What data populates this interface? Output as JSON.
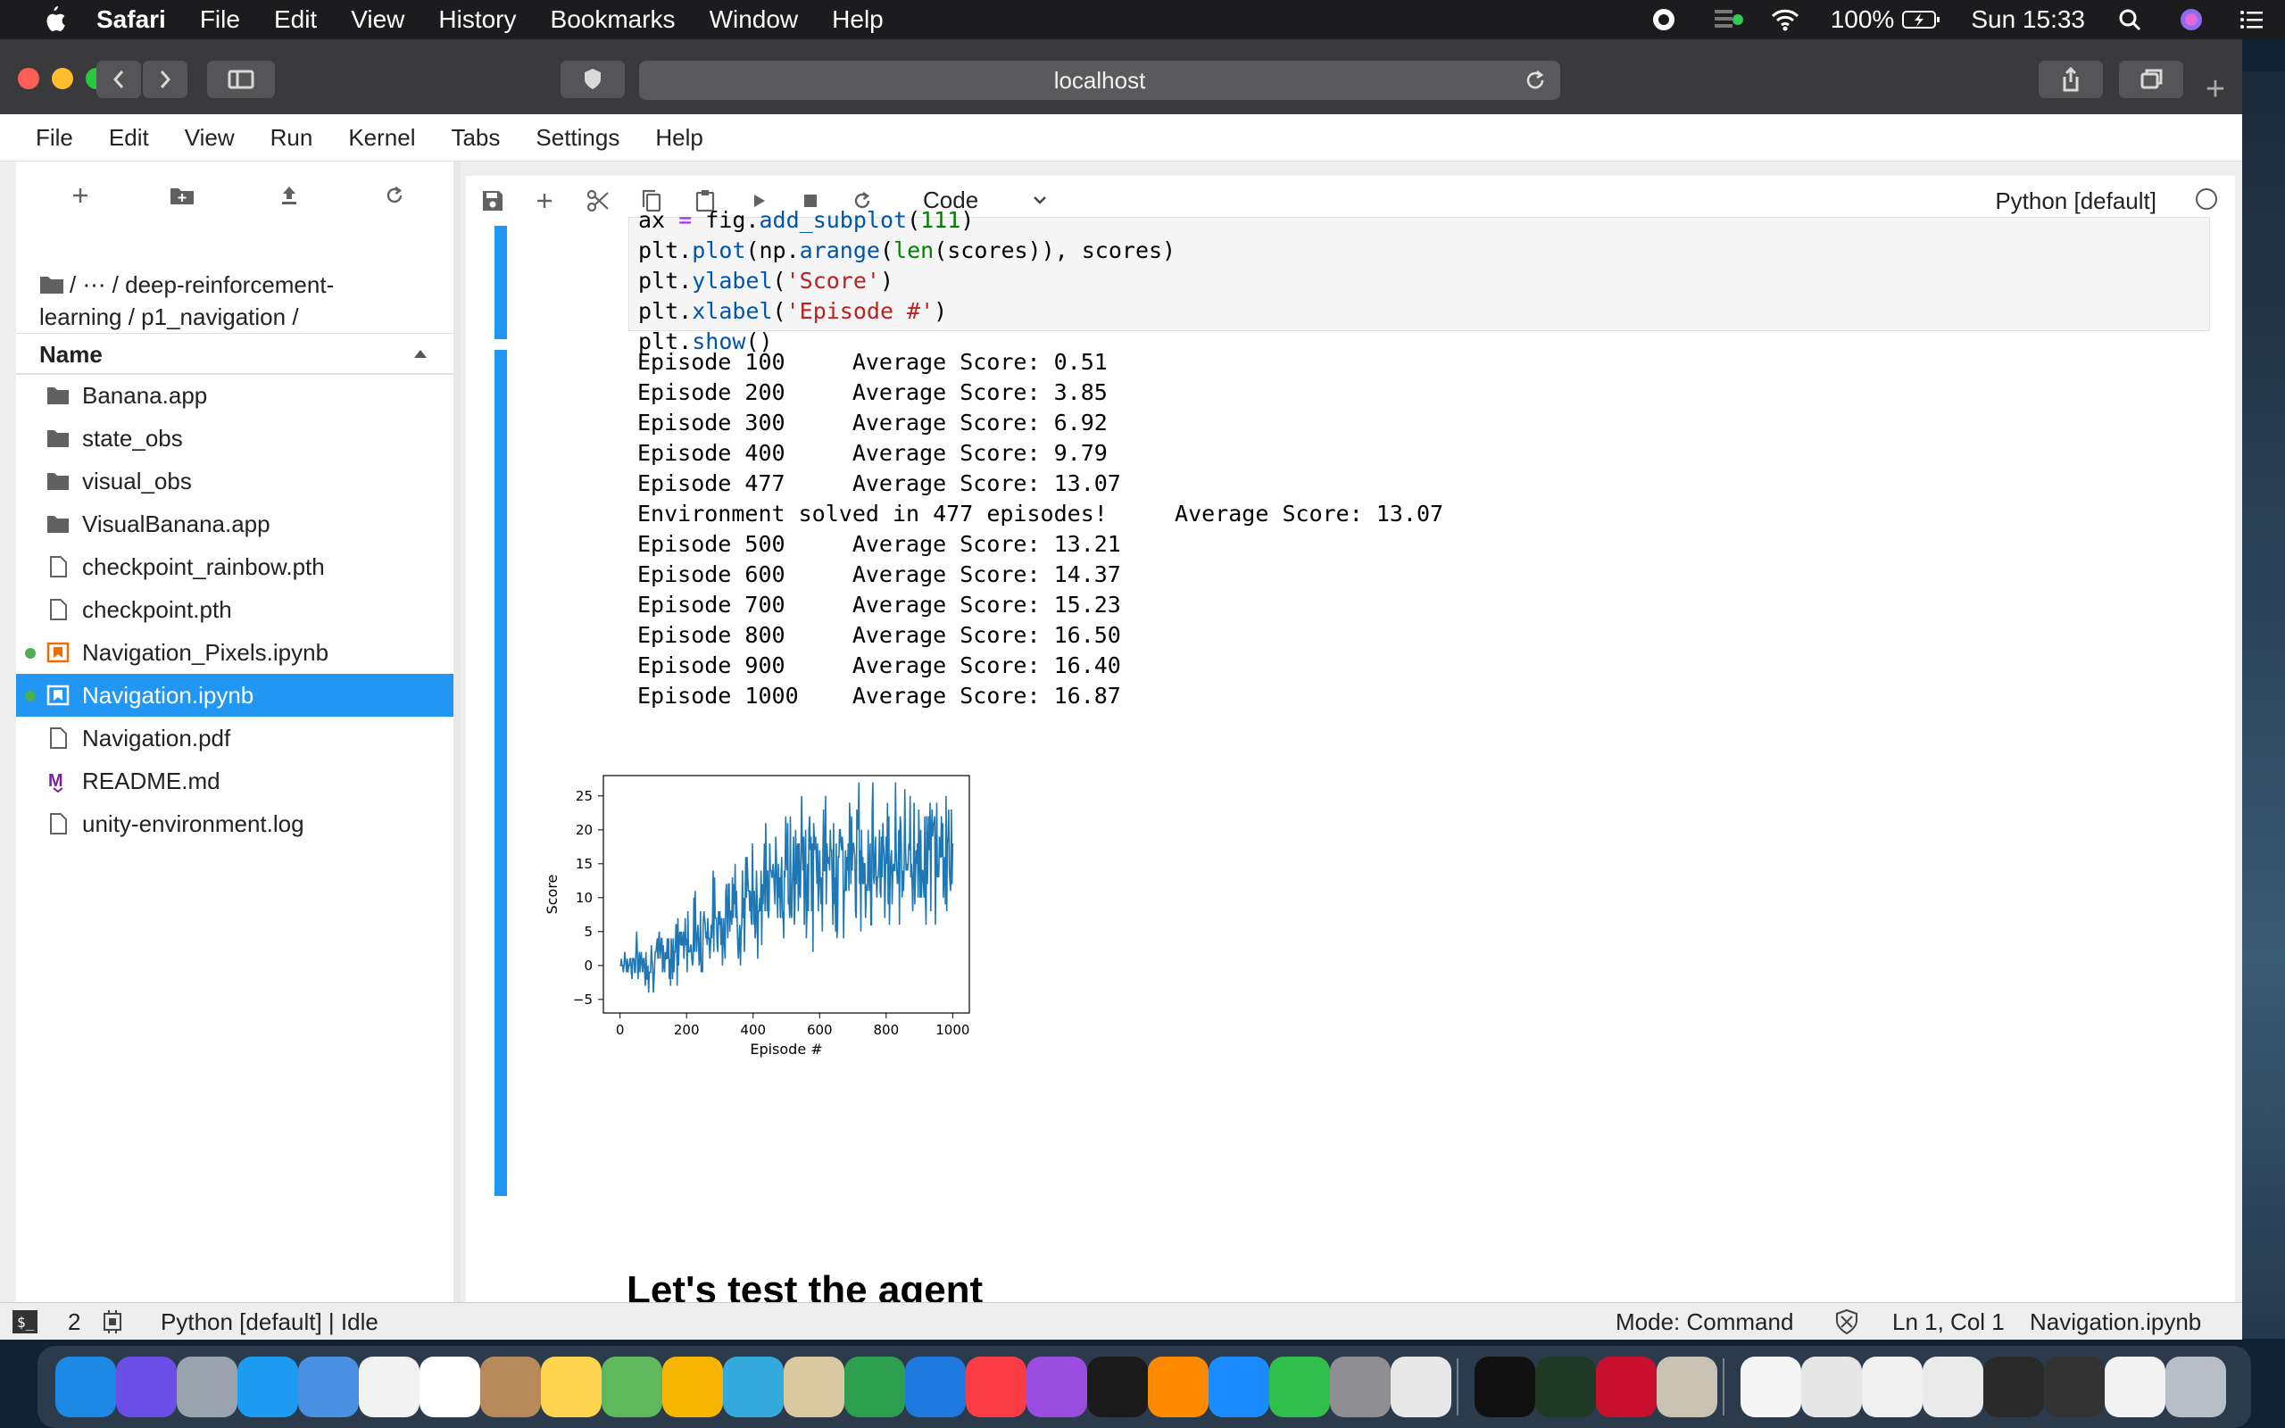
{
  "menubar": {
    "app": "Safari",
    "items": [
      "File",
      "Edit",
      "View",
      "History",
      "Bookmarks",
      "Window",
      "Help"
    ],
    "battery": "100%",
    "clock": "Sun 15:33"
  },
  "browser": {
    "url": "localhost"
  },
  "jupyter": {
    "menu": [
      "File",
      "Edit",
      "View",
      "Run",
      "Kernel",
      "Tabs",
      "Settings",
      "Help"
    ]
  },
  "filebrowser": {
    "breadcrumb": "/ ⋯ / deep-reinforcement-learning / p1_navigation /",
    "column_name": "Name",
    "items": [
      {
        "name": "Banana.app",
        "type": "folder"
      },
      {
        "name": "state_obs",
        "type": "folder"
      },
      {
        "name": "visual_obs",
        "type": "folder"
      },
      {
        "name": "VisualBanana.app",
        "type": "folder"
      },
      {
        "name": "checkpoint_rainbow.pth",
        "type": "file"
      },
      {
        "name": "checkpoint.pth",
        "type": "file"
      },
      {
        "name": "Navigation_Pixels.ipynb",
        "type": "notebook",
        "running": true
      },
      {
        "name": "Navigation.ipynb",
        "type": "notebook",
        "running": true,
        "selected": true
      },
      {
        "name": "Navigation.pdf",
        "type": "file"
      },
      {
        "name": "README.md",
        "type": "markdown"
      },
      {
        "name": "unity-environment.log",
        "type": "file"
      }
    ]
  },
  "notebook": {
    "cell_type": "Code",
    "kernel": "Python [default]",
    "code_lines": [
      "ax = fig.add_subplot(111)",
      "plt.plot(np.arange(len(scores)), scores)",
      "plt.ylabel('Score')",
      "plt.xlabel('Episode #')",
      "plt.show()"
    ],
    "output_lines": [
      "Episode 100     Average Score: 0.51",
      "Episode 200     Average Score: 3.85",
      "Episode 300     Average Score: 6.92",
      "Episode 400     Average Score: 9.79",
      "Episode 477     Average Score: 13.07",
      "Environment solved in 477 episodes!     Average Score: 13.07",
      "Episode 500     Average Score: 13.21",
      "Episode 600     Average Score: 14.37",
      "Episode 700     Average Score: 15.23",
      "Episode 800     Average Score: 16.50",
      "Episode 900     Average Score: 16.40",
      "Episode 1000    Average Score: 16.87"
    ],
    "next_heading": "Let's test the agent"
  },
  "chart_data": {
    "type": "line",
    "xlabel": "Episode #",
    "ylabel": "Score",
    "xlim": [
      -50,
      1050
    ],
    "ylim": [
      -7,
      28
    ],
    "xticks": [
      0,
      200,
      400,
      600,
      800,
      1000
    ],
    "yticks": [
      -5,
      0,
      5,
      10,
      15,
      20,
      25
    ],
    "trend_points": [
      {
        "x": 0,
        "y": 0.5
      },
      {
        "x": 100,
        "y": 0.51
      },
      {
        "x": 200,
        "y": 3.85
      },
      {
        "x": 300,
        "y": 6.92
      },
      {
        "x": 400,
        "y": 9.79
      },
      {
        "x": 477,
        "y": 13.07
      },
      {
        "x": 500,
        "y": 13.21
      },
      {
        "x": 600,
        "y": 14.37
      },
      {
        "x": 700,
        "y": 15.23
      },
      {
        "x": 800,
        "y": 16.5
      },
      {
        "x": 900,
        "y": 16.4
      },
      {
        "x": 1000,
        "y": 16.87
      }
    ],
    "score_range": {
      "min": -6,
      "max": 27
    },
    "color": "#1f77b4"
  },
  "statusbar": {
    "terminals": "2",
    "kernel": "Python [default] | Idle",
    "mode": "Mode: Command",
    "cursor": "Ln 1, Col 1",
    "file": "Navigation.ipynb"
  },
  "colors": {
    "accent": "#2196f3",
    "running_dot": "#4caf50"
  }
}
